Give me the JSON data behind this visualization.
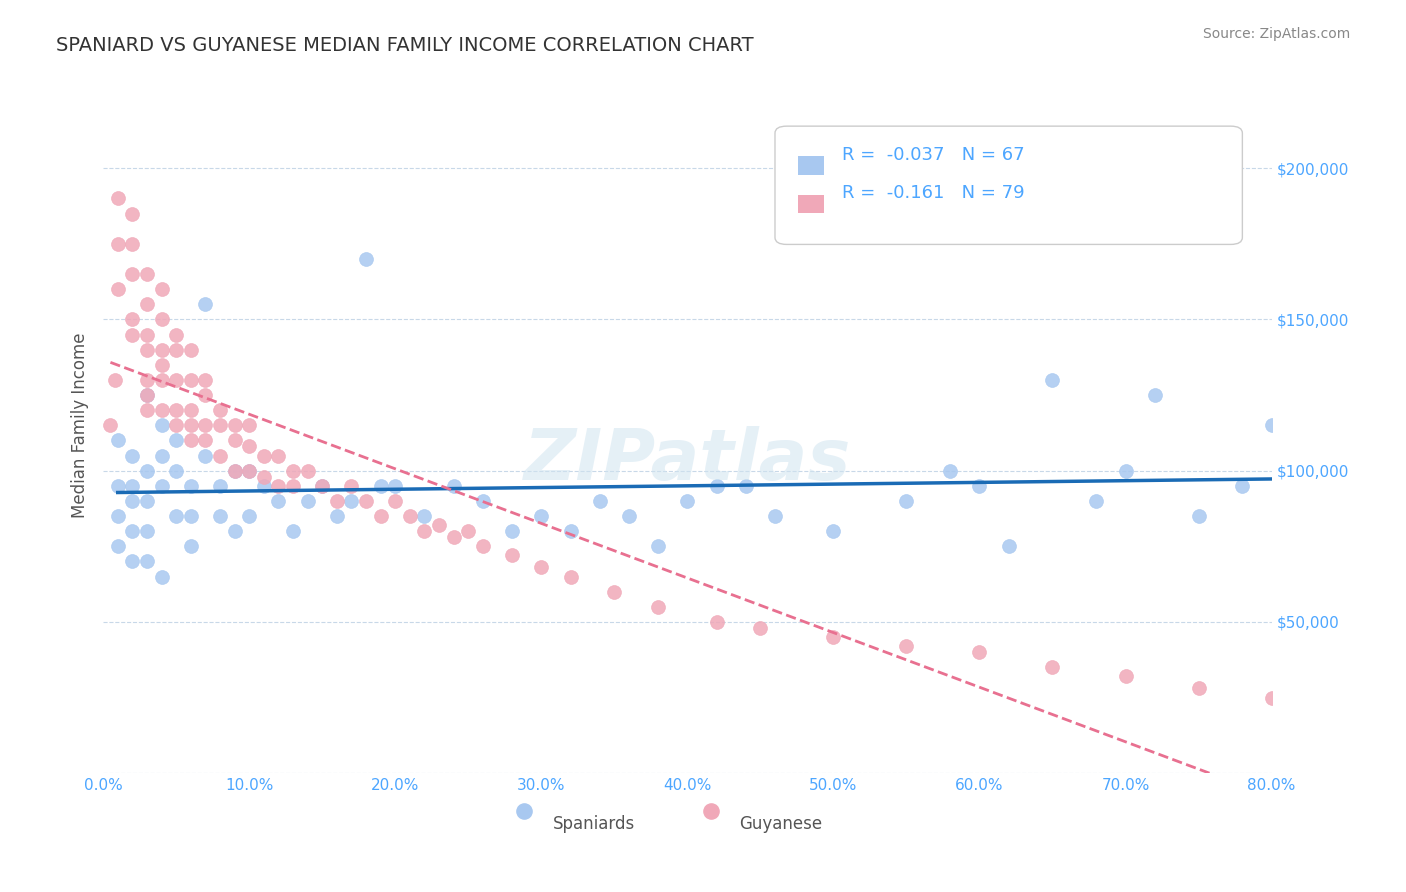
{
  "title": "SPANIARD VS GUYANESE MEDIAN FAMILY INCOME CORRELATION CHART",
  "source_text": "Source: ZipAtlas.com",
  "xlabel": "",
  "ylabel": "Median Family Income",
  "watermark": "ZIPatlas",
  "xlim": [
    0.0,
    0.8
  ],
  "ylim": [
    0,
    230000
  ],
  "xticks": [
    0.0,
    0.1,
    0.2,
    0.3,
    0.4,
    0.5,
    0.6,
    0.7,
    0.8
  ],
  "xticklabels": [
    "0.0%",
    "10.0%",
    "20.0%",
    "30.0%",
    "40.0%",
    "50.0%",
    "60.0%",
    "70.0%",
    "80.0%"
  ],
  "yticks": [
    0,
    50000,
    100000,
    150000,
    200000
  ],
  "yticklabels": [
    "",
    "$50,000",
    "$100,000",
    "$150,000",
    "$200,000"
  ],
  "ytick_color": "#4da6ff",
  "xtick_color": "#4da6ff",
  "grid_color": "#c8d8e8",
  "title_color": "#333333",
  "title_fontsize": 14,
  "background_color": "#ffffff",
  "spaniards_color": "#a8c8f0",
  "guyanese_color": "#f0a8b8",
  "spaniards_line_color": "#1a6bb5",
  "guyanese_line_color": "#e87090",
  "legend_text_color": "#4da6ff",
  "R_spaniards": -0.037,
  "N_spaniards": 67,
  "R_guyanese": -0.161,
  "N_guyanese": 79,
  "spaniards_x": [
    0.01,
    0.01,
    0.01,
    0.01,
    0.02,
    0.02,
    0.02,
    0.02,
    0.02,
    0.03,
    0.03,
    0.03,
    0.03,
    0.03,
    0.04,
    0.04,
    0.04,
    0.04,
    0.05,
    0.05,
    0.05,
    0.06,
    0.06,
    0.06,
    0.07,
    0.07,
    0.08,
    0.08,
    0.09,
    0.09,
    0.1,
    0.1,
    0.11,
    0.12,
    0.13,
    0.14,
    0.15,
    0.16,
    0.17,
    0.18,
    0.19,
    0.2,
    0.22,
    0.24,
    0.26,
    0.28,
    0.3,
    0.32,
    0.34,
    0.36,
    0.38,
    0.4,
    0.42,
    0.44,
    0.46,
    0.5,
    0.55,
    0.58,
    0.6,
    0.62,
    0.65,
    0.68,
    0.7,
    0.72,
    0.75,
    0.78,
    0.8
  ],
  "spaniards_y": [
    95000,
    110000,
    85000,
    75000,
    105000,
    95000,
    90000,
    80000,
    70000,
    125000,
    100000,
    90000,
    80000,
    70000,
    115000,
    105000,
    95000,
    65000,
    110000,
    100000,
    85000,
    95000,
    85000,
    75000,
    155000,
    105000,
    95000,
    85000,
    100000,
    80000,
    100000,
    85000,
    95000,
    90000,
    80000,
    90000,
    95000,
    85000,
    90000,
    170000,
    95000,
    95000,
    85000,
    95000,
    90000,
    80000,
    85000,
    80000,
    90000,
    85000,
    75000,
    90000,
    95000,
    95000,
    85000,
    80000,
    90000,
    100000,
    95000,
    75000,
    130000,
    90000,
    100000,
    125000,
    85000,
    95000,
    115000
  ],
  "guyanese_x": [
    0.005,
    0.008,
    0.01,
    0.01,
    0.01,
    0.02,
    0.02,
    0.02,
    0.02,
    0.02,
    0.03,
    0.03,
    0.03,
    0.03,
    0.03,
    0.03,
    0.03,
    0.04,
    0.04,
    0.04,
    0.04,
    0.04,
    0.04,
    0.05,
    0.05,
    0.05,
    0.05,
    0.05,
    0.06,
    0.06,
    0.06,
    0.06,
    0.06,
    0.07,
    0.07,
    0.07,
    0.07,
    0.08,
    0.08,
    0.08,
    0.09,
    0.09,
    0.09,
    0.1,
    0.1,
    0.1,
    0.11,
    0.11,
    0.12,
    0.12,
    0.13,
    0.13,
    0.14,
    0.15,
    0.16,
    0.17,
    0.18,
    0.19,
    0.2,
    0.21,
    0.22,
    0.23,
    0.24,
    0.25,
    0.26,
    0.28,
    0.3,
    0.32,
    0.35,
    0.38,
    0.42,
    0.45,
    0.5,
    0.55,
    0.6,
    0.65,
    0.7,
    0.75,
    0.8
  ],
  "guyanese_y": [
    115000,
    130000,
    190000,
    175000,
    160000,
    185000,
    175000,
    165000,
    150000,
    145000,
    165000,
    155000,
    145000,
    140000,
    130000,
    125000,
    120000,
    160000,
    150000,
    140000,
    135000,
    130000,
    120000,
    145000,
    140000,
    130000,
    120000,
    115000,
    140000,
    130000,
    120000,
    115000,
    110000,
    130000,
    125000,
    115000,
    110000,
    120000,
    115000,
    105000,
    115000,
    110000,
    100000,
    115000,
    108000,
    100000,
    105000,
    98000,
    105000,
    95000,
    100000,
    95000,
    100000,
    95000,
    90000,
    95000,
    90000,
    85000,
    90000,
    85000,
    80000,
    82000,
    78000,
    80000,
    75000,
    72000,
    68000,
    65000,
    60000,
    55000,
    50000,
    48000,
    45000,
    42000,
    40000,
    35000,
    32000,
    28000,
    25000
  ]
}
